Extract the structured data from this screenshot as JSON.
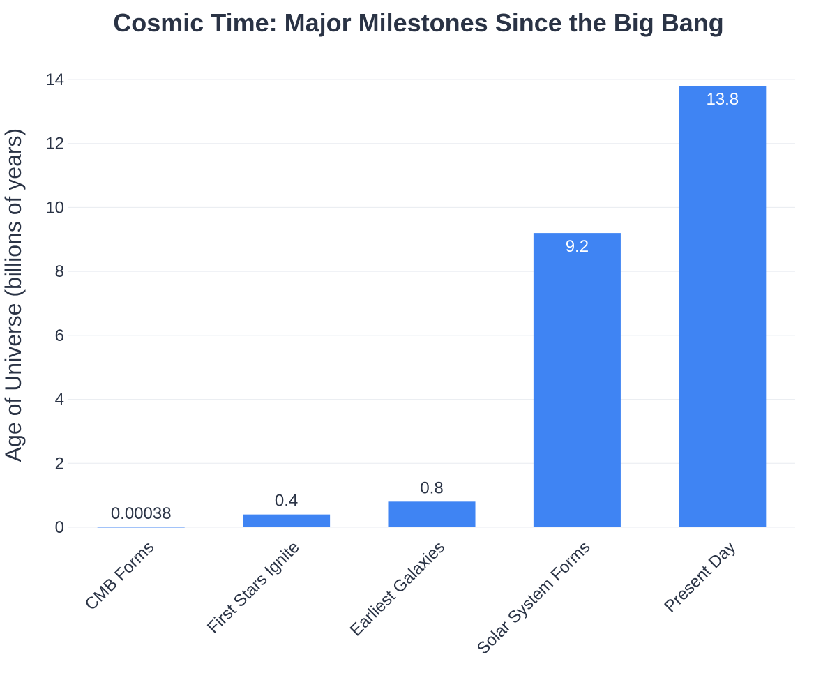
{
  "colors": {
    "bar": "#3f84f3",
    "text": "#2a3345",
    "grid": "#e8ebf0",
    "label_inside": "#ffffff",
    "label_outside": "#2a3345"
  },
  "chart_data": {
    "type": "bar",
    "title": "Cosmic Time: Major Milestones Since the Big Bang",
    "xlabel": "",
    "ylabel": "Age of Universe (billions of years)",
    "ylim": [
      0,
      14
    ],
    "yticks": [
      0,
      2,
      4,
      6,
      8,
      10,
      12,
      14
    ],
    "ytick_labels": [
      "0",
      "2",
      "4",
      "6",
      "8",
      "10",
      "12",
      "14"
    ],
    "grid": "horizontal",
    "categories": [
      "CMB Forms",
      "First Stars Ignite",
      "Earliest Galaxies",
      "Solar System Forms",
      "Present Day"
    ],
    "values": [
      0.00038,
      0.4,
      0.8,
      9.2,
      13.8
    ],
    "data_labels": [
      "0.00038",
      "0.4",
      "0.8",
      "9.2",
      "13.8"
    ]
  }
}
